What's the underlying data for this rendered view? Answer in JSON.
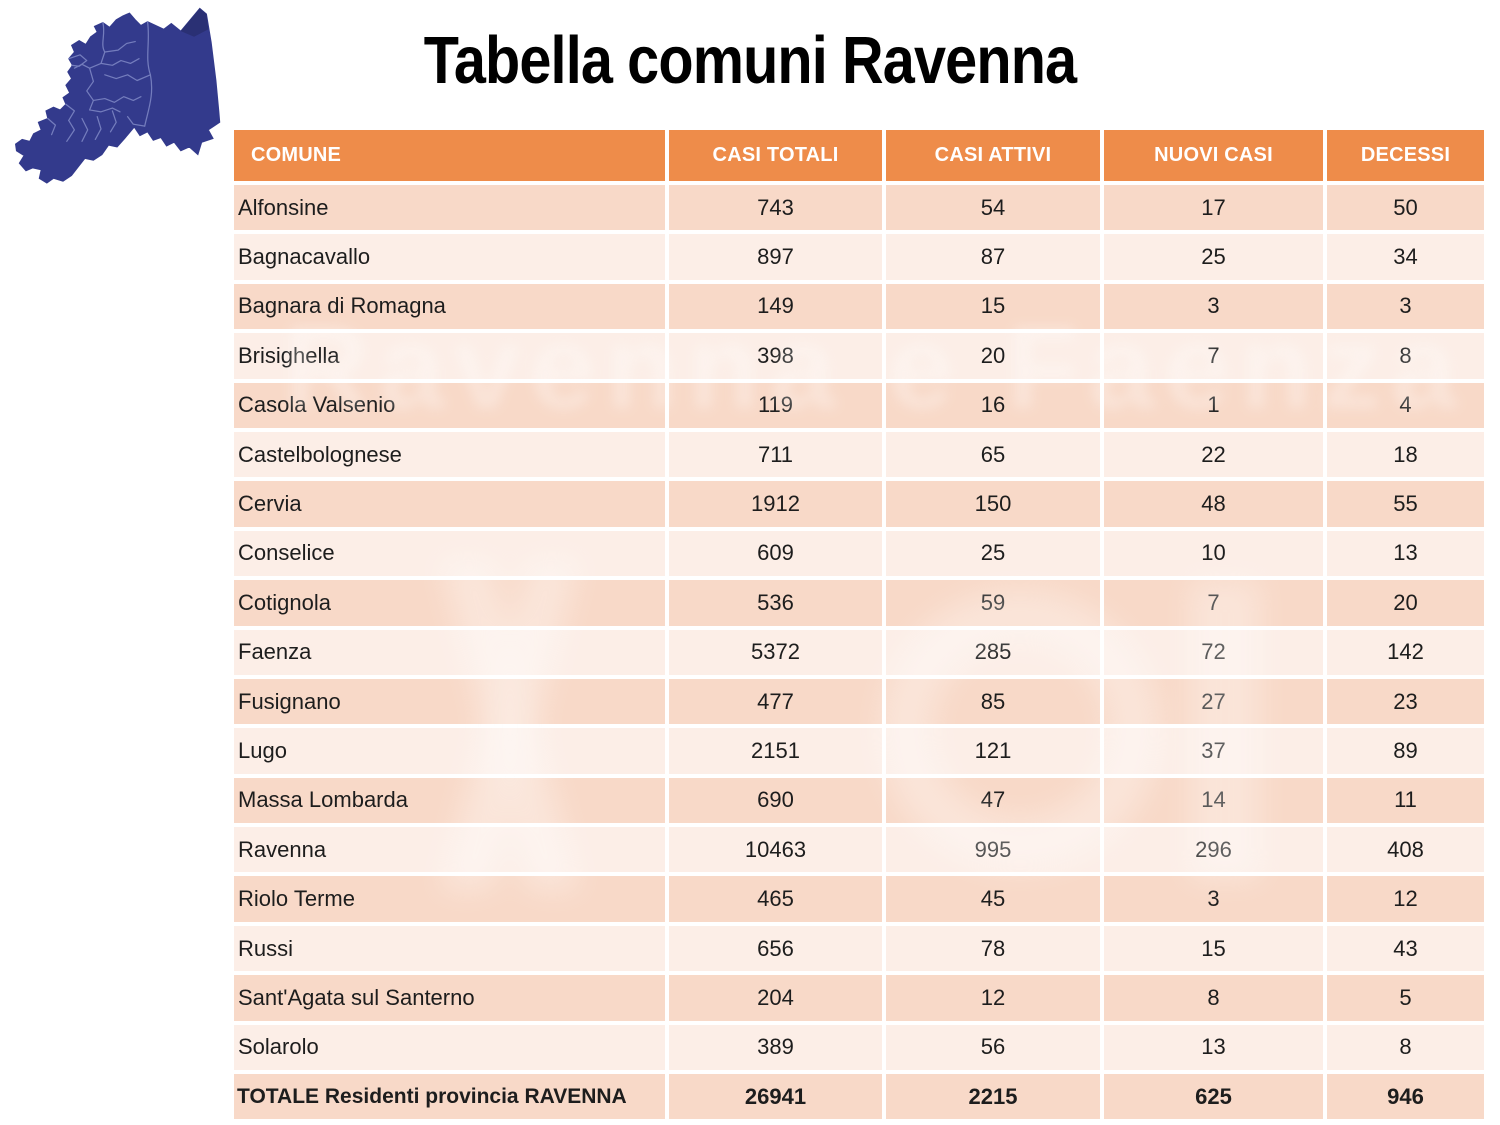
{
  "chart_data": {
    "type": "table",
    "title": "Tabella comuni Ravenna",
    "columns": [
      "COMUNE",
      "CASI TOTALI",
      "CASI ATTIVI",
      "NUOVI CASI",
      "DECESSI"
    ],
    "rows": [
      [
        "Alfonsine",
        743,
        54,
        17,
        50
      ],
      [
        "Bagnacavallo",
        897,
        87,
        25,
        34
      ],
      [
        "Bagnara di Romagna",
        149,
        15,
        3,
        3
      ],
      [
        "Brisighella",
        398,
        20,
        7,
        8
      ],
      [
        "Casola Valsenio",
        119,
        16,
        1,
        4
      ],
      [
        "Castelbolognese",
        711,
        65,
        22,
        18
      ],
      [
        "Cervia",
        1912,
        150,
        48,
        55
      ],
      [
        "Conselice",
        609,
        25,
        10,
        13
      ],
      [
        "Cotignola",
        536,
        59,
        7,
        20
      ],
      [
        "Faenza",
        5372,
        285,
        72,
        142
      ],
      [
        "Fusignano",
        477,
        85,
        27,
        23
      ],
      [
        "Lugo",
        2151,
        121,
        37,
        89
      ],
      [
        "Massa Lombarda",
        690,
        47,
        14,
        11
      ],
      [
        "Ravenna",
        10463,
        995,
        296,
        408
      ],
      [
        "Riolo Terme",
        465,
        45,
        3,
        12
      ],
      [
        "Russi",
        656,
        78,
        15,
        43
      ],
      [
        "Sant'Agata sul Santerno",
        204,
        12,
        8,
        5
      ],
      [
        "Solarolo",
        389,
        56,
        13,
        8
      ]
    ],
    "total_row": [
      "TOTALE Residenti provincia RAVENNA",
      26941,
      2215,
      625,
      946
    ],
    "layout": {
      "banded_rows": true,
      "grid": "white-gaps",
      "header_position": "top"
    }
  },
  "map": {
    "name": "ravenna-province-map"
  },
  "watermark": {
    "text": "Ravenna e Faenza"
  },
  "colors": {
    "header_bg": "#ee8c4a",
    "row_dark": "#f8d9c8",
    "row_light": "#fceee7",
    "map_fill": "#333a8c",
    "map_border": "#8089c6",
    "title_color": "#000000",
    "header_text": "#ffffff",
    "cell_text": "#1d1d1d"
  }
}
